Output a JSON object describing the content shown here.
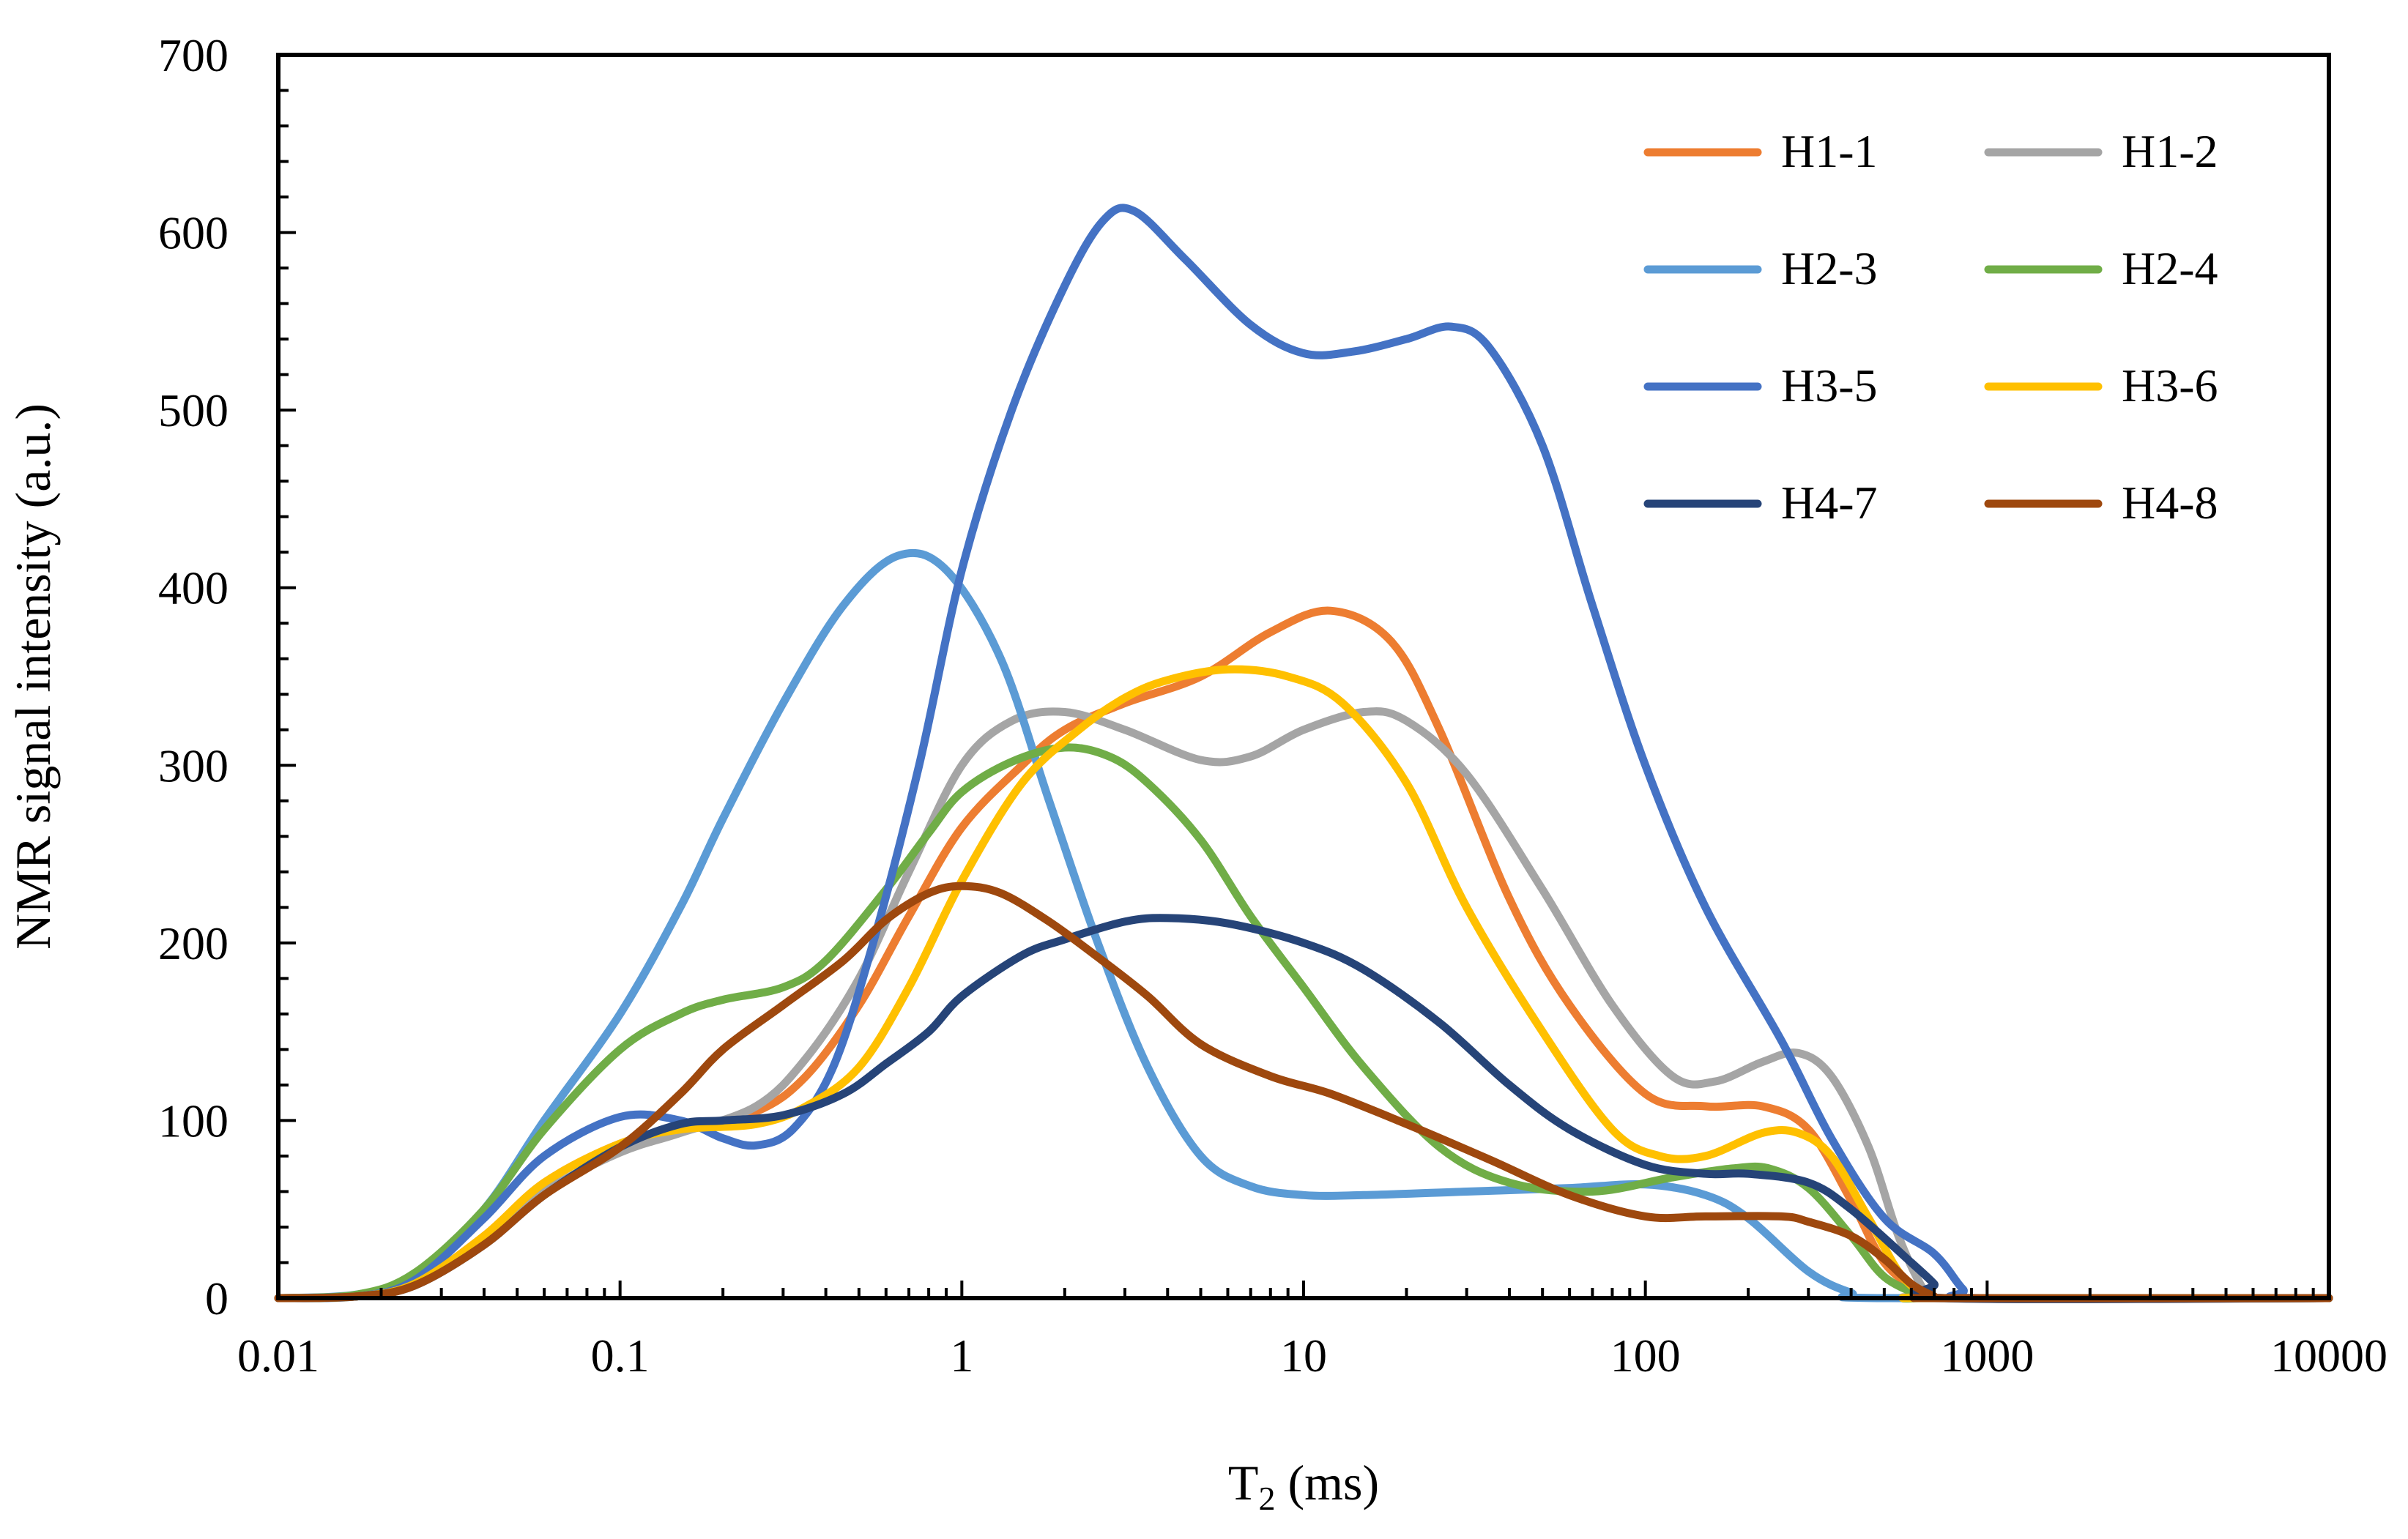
{
  "chart_data": {
    "type": "line",
    "title": "",
    "xlabel": "T",
    "xlabel_sub": "2",
    "xlabel_unit": " (ms)",
    "ylabel": "NMR signal intensity (a.u.)",
    "xscale": "log",
    "xlim": [
      0.01,
      10000
    ],
    "ylim": [
      0,
      700
    ],
    "x_ticks": [
      0.01,
      0.1,
      1,
      10,
      100,
      1000,
      10000
    ],
    "x_tick_labels": [
      "0.01",
      "0.1",
      "1",
      "10",
      "100",
      "1000",
      "10000"
    ],
    "y_ticks": [
      0,
      100,
      200,
      300,
      400,
      500,
      600,
      700
    ],
    "y_tick_labels": [
      "0",
      "100",
      "200",
      "300",
      "400",
      "500",
      "600",
      "700"
    ],
    "grid": false,
    "legend_position": "top-right",
    "series": [
      {
        "name": "H1-1",
        "color": "#ED7D31",
        "points": [
          [
            0.01,
            0
          ],
          [
            0.017,
            1
          ],
          [
            0.025,
            8
          ],
          [
            0.04,
            35
          ],
          [
            0.06,
            65
          ],
          [
            0.1,
            87
          ],
          [
            0.15,
            95
          ],
          [
            0.25,
            105
          ],
          [
            0.35,
            125
          ],
          [
            0.5,
            165
          ],
          [
            0.7,
            215
          ],
          [
            1,
            265
          ],
          [
            1.5,
            300
          ],
          [
            2,
            320
          ],
          [
            3,
            335
          ],
          [
            5,
            350
          ],
          [
            8,
            375
          ],
          [
            12,
            387
          ],
          [
            18,
            370
          ],
          [
            25,
            320
          ],
          [
            40,
            225
          ],
          [
            60,
            165
          ],
          [
            100,
            115
          ],
          [
            150,
            108
          ],
          [
            220,
            108
          ],
          [
            300,
            95
          ],
          [
            400,
            55
          ],
          [
            500,
            20
          ],
          [
            650,
            2
          ],
          [
            700,
            0
          ],
          [
            10000,
            0
          ]
        ]
      },
      {
        "name": "H1-2",
        "color": "#A5A5A5",
        "points": [
          [
            0.01,
            0
          ],
          [
            0.017,
            1
          ],
          [
            0.025,
            8
          ],
          [
            0.04,
            33
          ],
          [
            0.06,
            60
          ],
          [
            0.1,
            82
          ],
          [
            0.15,
            93
          ],
          [
            0.25,
            108
          ],
          [
            0.35,
            135
          ],
          [
            0.5,
            180
          ],
          [
            0.7,
            240
          ],
          [
            1,
            300
          ],
          [
            1.4,
            325
          ],
          [
            2,
            330
          ],
          [
            3,
            320
          ],
          [
            5,
            303
          ],
          [
            7,
            305
          ],
          [
            10,
            320
          ],
          [
            15,
            330
          ],
          [
            20,
            325
          ],
          [
            30,
            295
          ],
          [
            50,
            230
          ],
          [
            80,
            165
          ],
          [
            120,
            125
          ],
          [
            160,
            122
          ],
          [
            220,
            133
          ],
          [
            280,
            138
          ],
          [
            350,
            125
          ],
          [
            450,
            85
          ],
          [
            550,
            35
          ],
          [
            650,
            5
          ],
          [
            700,
            0
          ],
          [
            10000,
            0
          ]
        ]
      },
      {
        "name": "H2-3",
        "color": "#5B9BD5",
        "points": [
          [
            0.01,
            0
          ],
          [
            0.017,
            2
          ],
          [
            0.025,
            12
          ],
          [
            0.04,
            50
          ],
          [
            0.06,
            100
          ],
          [
            0.1,
            160
          ],
          [
            0.15,
            220
          ],
          [
            0.2,
            270
          ],
          [
            0.3,
            335
          ],
          [
            0.45,
            390
          ],
          [
            0.65,
            418
          ],
          [
            0.9,
            410
          ],
          [
            1.3,
            360
          ],
          [
            1.8,
            280
          ],
          [
            2.5,
            200
          ],
          [
            3.5,
            130
          ],
          [
            5,
            80
          ],
          [
            7,
            63
          ],
          [
            10,
            58
          ],
          [
            15,
            58
          ],
          [
            30,
            60
          ],
          [
            60,
            62
          ],
          [
            100,
            64
          ],
          [
            150,
            58
          ],
          [
            200,
            45
          ],
          [
            300,
            15
          ],
          [
            400,
            3
          ],
          [
            500,
            0
          ],
          [
            10000,
            0
          ]
        ]
      },
      {
        "name": "H2-4",
        "color": "#70AD47",
        "points": [
          [
            0.01,
            0
          ],
          [
            0.017,
            2
          ],
          [
            0.025,
            14
          ],
          [
            0.04,
            50
          ],
          [
            0.06,
            95
          ],
          [
            0.1,
            140
          ],
          [
            0.15,
            160
          ],
          [
            0.2,
            168
          ],
          [
            0.3,
            175
          ],
          [
            0.4,
            190
          ],
          [
            0.6,
            230
          ],
          [
            0.8,
            262
          ],
          [
            1,
            285
          ],
          [
            1.4,
            302
          ],
          [
            2,
            310
          ],
          [
            2.7,
            305
          ],
          [
            3.5,
            290
          ],
          [
            5,
            258
          ],
          [
            7,
            215
          ],
          [
            10,
            175
          ],
          [
            15,
            130
          ],
          [
            25,
            85
          ],
          [
            40,
            65
          ],
          [
            70,
            60
          ],
          [
            120,
            68
          ],
          [
            180,
            73
          ],
          [
            230,
            73
          ],
          [
            300,
            62
          ],
          [
            400,
            35
          ],
          [
            500,
            12
          ],
          [
            650,
            1
          ],
          [
            700,
            0
          ],
          [
            10000,
            0
          ]
        ]
      },
      {
        "name": "H3-5",
        "color": "#4472C4",
        "points": [
          [
            0.01,
            0
          ],
          [
            0.017,
            1
          ],
          [
            0.025,
            10
          ],
          [
            0.04,
            45
          ],
          [
            0.06,
            80
          ],
          [
            0.1,
            102
          ],
          [
            0.15,
            100
          ],
          [
            0.2,
            90
          ],
          [
            0.25,
            86
          ],
          [
            0.32,
            95
          ],
          [
            0.42,
            130
          ],
          [
            0.55,
            200
          ],
          [
            0.75,
            300
          ],
          [
            1,
            410
          ],
          [
            1.4,
            500
          ],
          [
            2,
            570
          ],
          [
            2.6,
            607
          ],
          [
            3.2,
            612
          ],
          [
            4.5,
            585
          ],
          [
            7,
            548
          ],
          [
            10,
            532
          ],
          [
            14,
            533
          ],
          [
            20,
            540
          ],
          [
            27,
            547
          ],
          [
            35,
            535
          ],
          [
            50,
            480
          ],
          [
            70,
            390
          ],
          [
            100,
            300
          ],
          [
            150,
            220
          ],
          [
            250,
            145
          ],
          [
            350,
            90
          ],
          [
            500,
            45
          ],
          [
            700,
            25
          ],
          [
            850,
            5
          ],
          [
            950,
            0
          ],
          [
            10000,
            0
          ]
        ]
      },
      {
        "name": "H3-6",
        "color": "#FFC000",
        "points": [
          [
            0.01,
            0
          ],
          [
            0.017,
            1
          ],
          [
            0.025,
            8
          ],
          [
            0.04,
            35
          ],
          [
            0.06,
            65
          ],
          [
            0.1,
            87
          ],
          [
            0.15,
            95
          ],
          [
            0.25,
            98
          ],
          [
            0.35,
            108
          ],
          [
            0.5,
            130
          ],
          [
            0.7,
            175
          ],
          [
            1,
            235
          ],
          [
            1.5,
            290
          ],
          [
            2.2,
            320
          ],
          [
            3,
            338
          ],
          [
            4,
            348
          ],
          [
            6,
            354
          ],
          [
            9,
            350
          ],
          [
            13,
            335
          ],
          [
            20,
            290
          ],
          [
            30,
            220
          ],
          [
            50,
            150
          ],
          [
            80,
            95
          ],
          [
            110,
            80
          ],
          [
            150,
            80
          ],
          [
            220,
            93
          ],
          [
            280,
            93
          ],
          [
            350,
            80
          ],
          [
            450,
            45
          ],
          [
            550,
            15
          ],
          [
            650,
            2
          ],
          [
            700,
            0
          ],
          [
            10000,
            0
          ]
        ]
      },
      {
        "name": "H4-7",
        "color": "#264478",
        "points": [
          [
            0.01,
            0
          ],
          [
            0.017,
            1
          ],
          [
            0.025,
            7
          ],
          [
            0.04,
            30
          ],
          [
            0.06,
            58
          ],
          [
            0.1,
            85
          ],
          [
            0.15,
            98
          ],
          [
            0.2,
            100
          ],
          [
            0.3,
            103
          ],
          [
            0.45,
            115
          ],
          [
            0.6,
            132
          ],
          [
            0.8,
            150
          ],
          [
            1,
            170
          ],
          [
            1.5,
            193
          ],
          [
            2,
            202
          ],
          [
            3,
            212
          ],
          [
            4,
            214
          ],
          [
            6,
            211
          ],
          [
            10,
            200
          ],
          [
            15,
            185
          ],
          [
            25,
            155
          ],
          [
            40,
            120
          ],
          [
            60,
            95
          ],
          [
            100,
            75
          ],
          [
            150,
            70
          ],
          [
            200,
            70
          ],
          [
            300,
            65
          ],
          [
            400,
            50
          ],
          [
            600,
            20
          ],
          [
            700,
            8
          ],
          [
            750,
            0
          ],
          [
            10000,
            0
          ]
        ]
      },
      {
        "name": "H4-8",
        "color": "#9E480E",
        "points": [
          [
            0.01,
            0
          ],
          [
            0.017,
            1
          ],
          [
            0.025,
            7
          ],
          [
            0.04,
            30
          ],
          [
            0.06,
            58
          ],
          [
            0.1,
            85
          ],
          [
            0.15,
            115
          ],
          [
            0.2,
            140
          ],
          [
            0.3,
            165
          ],
          [
            0.45,
            190
          ],
          [
            0.6,
            213
          ],
          [
            0.8,
            228
          ],
          [
            1,
            232
          ],
          [
            1.3,
            228
          ],
          [
            1.8,
            212
          ],
          [
            2.5,
            192
          ],
          [
            3.5,
            170
          ],
          [
            5,
            143
          ],
          [
            8,
            125
          ],
          [
            12,
            115
          ],
          [
            20,
            98
          ],
          [
            35,
            78
          ],
          [
            60,
            58
          ],
          [
            100,
            46
          ],
          [
            150,
            46
          ],
          [
            250,
            46
          ],
          [
            300,
            43
          ],
          [
            400,
            35
          ],
          [
            500,
            22
          ],
          [
            600,
            8
          ],
          [
            700,
            1
          ],
          [
            750,
            0
          ],
          [
            10000,
            0
          ]
        ]
      }
    ]
  }
}
